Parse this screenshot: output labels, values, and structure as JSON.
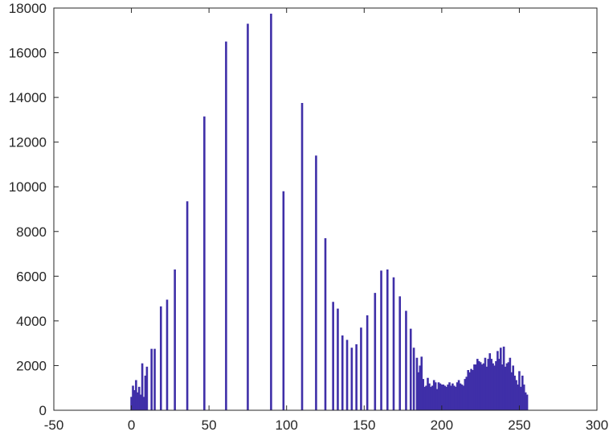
{
  "chart_data": {
    "type": "bar",
    "title": "",
    "xlabel": "",
    "ylabel": "",
    "xlim": [
      -50,
      300
    ],
    "ylim": [
      0,
      18000
    ],
    "xticks": [
      -50,
      0,
      50,
      100,
      150,
      200,
      250,
      300
    ],
    "yticks": [
      0,
      2000,
      4000,
      6000,
      8000,
      10000,
      12000,
      14000,
      16000,
      18000
    ],
    "grid": false,
    "legend": "none",
    "bar_color": "#3f2fa8",
    "x": [
      0,
      1,
      2,
      3,
      4,
      5,
      6,
      7,
      8,
      9,
      10,
      13,
      15,
      19,
      23,
      28,
      36,
      47,
      61,
      75,
      90,
      98,
      110,
      119,
      125,
      130,
      133,
      136,
      139,
      142,
      145,
      148,
      152,
      157,
      161,
      165,
      169,
      173,
      177,
      180,
      182,
      184,
      185,
      186,
      187,
      188,
      189,
      190,
      191,
      192,
      193,
      194,
      195,
      196,
      197,
      198,
      199,
      200,
      201,
      202,
      203,
      204,
      205,
      206,
      207,
      208,
      209,
      210,
      211,
      212,
      213,
      214,
      215,
      216,
      217,
      218,
      219,
      220,
      221,
      222,
      223,
      224,
      225,
      226,
      227,
      228,
      229,
      230,
      231,
      232,
      233,
      234,
      235,
      236,
      237,
      238,
      239,
      240,
      241,
      242,
      243,
      244,
      245,
      246,
      247,
      248,
      249,
      250,
      251,
      252,
      253,
      254,
      255
    ],
    "values": [
      600,
      1100,
      900,
      1350,
      800,
      1050,
      700,
      2100,
      600,
      1550,
      1950,
      2750,
      2750,
      4650,
      4950,
      6300,
      9350,
      13150,
      16500,
      17300,
      17750,
      9800,
      13750,
      11400,
      7700,
      4850,
      4550,
      3350,
      3150,
      2800,
      2950,
      3700,
      4250,
      5250,
      6250,
      6300,
      5950,
      5100,
      4450,
      3650,
      2800,
      2350,
      1700,
      2000,
      2400,
      1400,
      1050,
      1100,
      1450,
      1200,
      1050,
      1100,
      1350,
      1250,
      950,
      1250,
      1200,
      1150,
      1150,
      1100,
      1050,
      1150,
      1250,
      1100,
      1200,
      1100,
      1050,
      1250,
      1350,
      1200,
      1150,
      1100,
      1400,
      1500,
      1800,
      1700,
      1850,
      1800,
      2050,
      2050,
      2300,
      2200,
      2150,
      2050,
      2100,
      2350,
      1950,
      2300,
      2550,
      2300,
      2100,
      2000,
      2200,
      2650,
      2300,
      2800,
      2050,
      2850,
      1950,
      2100,
      2150,
      2350,
      1700,
      2000,
      1550,
      1350,
      1150,
      1750,
      1050,
      1550,
      1150,
      800,
      700
    ]
  }
}
